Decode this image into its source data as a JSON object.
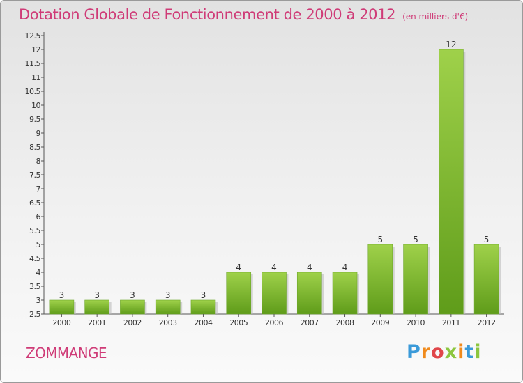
{
  "title": "Dotation Globale de Fonctionnement de 2000 à 2012",
  "unit_note": "(en milliers d'€)",
  "commune": "ZOMMANGE",
  "brand": {
    "letters": [
      "P",
      "r",
      "o",
      "x",
      "i",
      "t",
      "i"
    ],
    "colors": [
      "#3a9ad9",
      "#f08a1c",
      "#e0464a",
      "#8cc63f",
      "#f08a1c",
      "#3a9ad9",
      "#8cc63f"
    ]
  },
  "colors": {
    "title": "#cf3b77",
    "bar_top": "#9fd14a",
    "bar_bottom": "#5f9c1a",
    "axis": "#555555"
  },
  "chart_data": {
    "type": "bar",
    "categories": [
      "2000",
      "2001",
      "2002",
      "2003",
      "2004",
      "2005",
      "2006",
      "2007",
      "2008",
      "2009",
      "2010",
      "2011",
      "2012"
    ],
    "values": [
      3,
      3,
      3,
      3,
      3,
      4,
      4,
      4,
      4,
      5,
      5,
      12,
      5
    ],
    "value_labels": [
      "3",
      "3",
      "3",
      "3",
      "3",
      "4",
      "4",
      "4",
      "4",
      "5",
      "5",
      "12",
      "5"
    ],
    "y_ticks": [
      "2.5",
      "3",
      "3.5",
      "4",
      "4.5",
      "5",
      "5.5",
      "6",
      "6.5",
      "7",
      "7.5",
      "8",
      "8.5",
      "9",
      "9.5",
      "10",
      "10.5",
      "11",
      "11.5",
      "12",
      "12.5"
    ],
    "ylim": [
      2.5,
      12.5
    ],
    "grid": false
  }
}
